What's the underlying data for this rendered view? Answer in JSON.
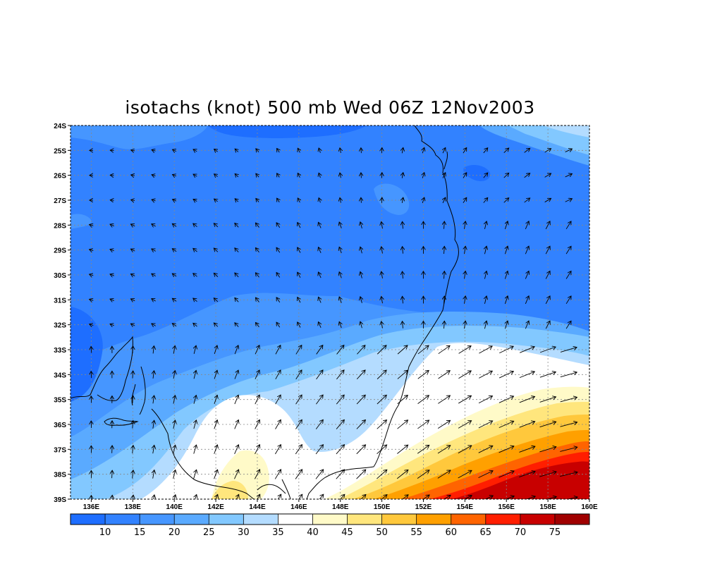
{
  "title": "isotachs (knot) 500 mb Wed 06Z 12Nov2003",
  "map": {
    "lon_range": [
      135,
      160
    ],
    "lat_range": [
      -39,
      -24
    ],
    "lon_ticks": [
      "136E",
      "138E",
      "140E",
      "142E",
      "144E",
      "146E",
      "148E",
      "150E",
      "152E",
      "154E",
      "156E",
      "158E",
      "160E"
    ],
    "lat_ticks": [
      "24S",
      "25S",
      "26S",
      "27S",
      "28S",
      "29S",
      "30S",
      "31S",
      "32S",
      "33S",
      "34S",
      "35S",
      "36S",
      "37S",
      "38S",
      "39S"
    ],
    "gridlines": true,
    "projection": "lat-lon"
  },
  "colorbar": {
    "labels": [
      "10",
      "15",
      "20",
      "25",
      "30",
      "35",
      "40",
      "45",
      "50",
      "55",
      "60",
      "65",
      "70",
      "75"
    ],
    "colors": [
      "#1e6eff",
      "#3282ff",
      "#4696ff",
      "#5aaaff",
      "#82c8ff",
      "#b4dcff",
      "#ffffff",
      "#fffac8",
      "#ffe67d",
      "#ffc83c",
      "#ffa000",
      "#ff6400",
      "#ff1e00",
      "#c80000",
      "#a00000"
    ]
  },
  "field_colors": {
    "c10": "#1e6eff",
    "c15": "#3282ff",
    "c20": "#4696ff",
    "c25": "#5aaaff",
    "c30": "#82c8ff",
    "c35": "#b4dcff",
    "c40": "#ffffff",
    "c45": "#fffac8",
    "c50": "#ffe67d",
    "c55": "#ffc83c",
    "c60": "#ffa000",
    "c65": "#ff6400",
    "c70": "#ff1e00",
    "c75": "#c80000"
  }
}
